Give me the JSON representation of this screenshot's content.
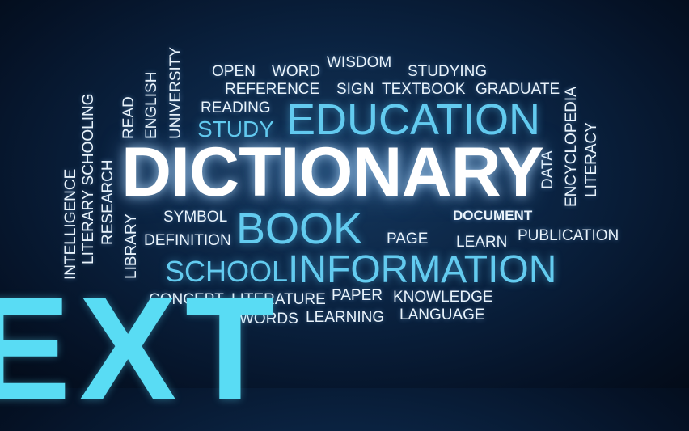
{
  "words": {
    "dictionary": "DICTIONARY",
    "education": "EDUCATION",
    "book": "BOOK",
    "information": "INFORMATION",
    "school": "SCHOOL",
    "study": "STUDY",
    "open": "OPEN",
    "word": "WORD",
    "wisdom": "WISDOM",
    "studying": "STUDYING",
    "reference": "REFERENCE",
    "sign": "SIGN",
    "textbook": "TEXTBOOK",
    "graduate": "GRADUATE",
    "reading": "READING",
    "read": "READ",
    "english": "ENGLISH",
    "university": "UNIVERSITY",
    "literary_schooling": "LITERARY SCHOOLING",
    "intelligence": "INTELLIGENCE",
    "research": "RESEARCH",
    "library": "LIBRARY",
    "symbol": "SYMBOL",
    "definition": "DEFINITION",
    "data": "DATA",
    "encyclopedia": "ENCYCLOPEDIA",
    "literacy": "LITERACY",
    "document": "DOCUMENT",
    "page": "PAGE",
    "learn": "LEARN",
    "publication": "PUBLICATION",
    "concept": "CONCEPT",
    "literature": "LITERATURE",
    "paper": "PAPER",
    "knowledge": "KNOWLEDGE",
    "words": "WORDS",
    "learning": "LEARNING",
    "language": "LANGUAGE"
  },
  "overlay_text": "EXT",
  "colors": {
    "background": "#0a2240",
    "word": "#e9f3fb",
    "highlight": "#63cbef",
    "overlay": "#59dcf4"
  }
}
